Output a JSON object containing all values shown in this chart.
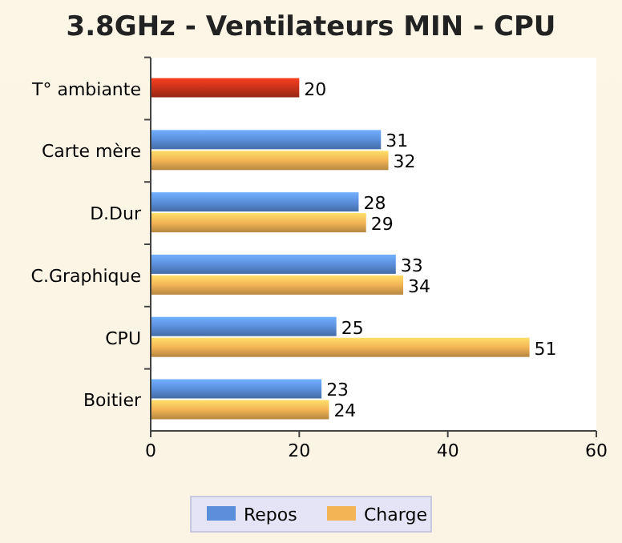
{
  "chart_data": {
    "type": "bar",
    "orientation": "horizontal",
    "title": "3.8GHz - Ventilateurs MIN - CPU",
    "categories": [
      "T° ambiante",
      "Carte mère",
      "D.Dur",
      "C.Graphique",
      "CPU",
      "Boitier"
    ],
    "series": [
      {
        "name": "Repos",
        "color": "#5b8fdc",
        "values": [
          null,
          31,
          28,
          33,
          25,
          23
        ]
      },
      {
        "name": "Charge",
        "color": "#f2b455",
        "values": [
          null,
          32,
          29,
          34,
          51,
          24
        ]
      },
      {
        "color": "#c8321a",
        "values": [
          20,
          null,
          null,
          null,
          null,
          null
        ]
      }
    ],
    "xlim": [
      0,
      60
    ],
    "xticks": [
      0,
      20,
      40,
      60
    ],
    "data_labels": true,
    "legend": "bottom",
    "grid": false
  }
}
